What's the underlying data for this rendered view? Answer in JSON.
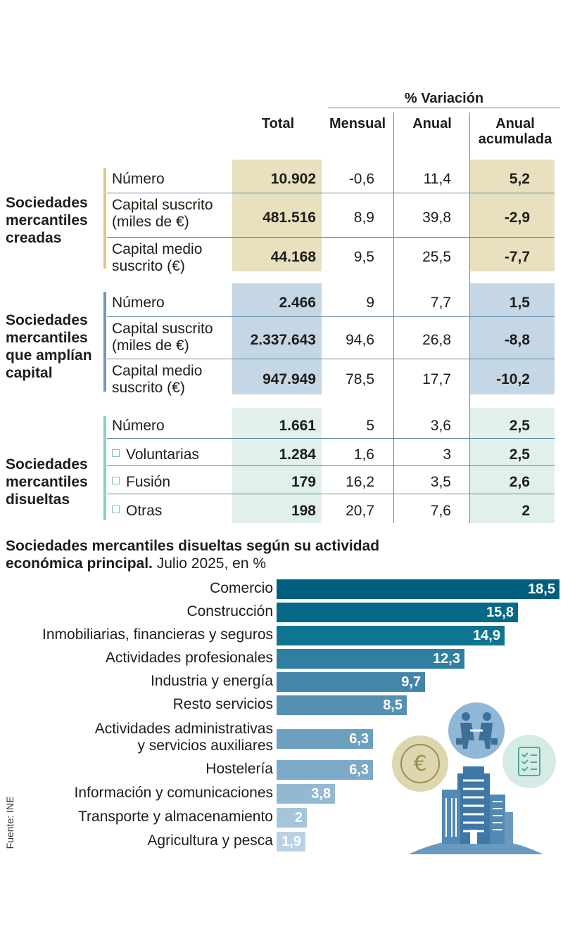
{
  "table": {
    "variation_header": "% Variación",
    "columns": [
      "Total",
      "Mensual",
      "Anual",
      "Anual acumulada"
    ],
    "groups": [
      {
        "name": "Sociedades mercantiles creadas",
        "rows": [
          {
            "label": "Número",
            "values": [
              "10.902",
              "-0,6",
              "11,4",
              "5,2"
            ]
          },
          {
            "label": "Capital suscrito (miles de €)",
            "values": [
              "481.516",
              "8,9",
              "39,8",
              "-2,9"
            ]
          },
          {
            "label": "Capital medio suscrito (€)",
            "values": [
              "44.168",
              "9,5",
              "25,5",
              "-7,7"
            ]
          }
        ],
        "color": "#e8e0bf",
        "bracket_color": "#d8c98a"
      },
      {
        "name": "Sociedades mercantiles que amplían capital",
        "rows": [
          {
            "label": "Número",
            "values": [
              "2.466",
              "9",
              "7,7",
              "1,5"
            ]
          },
          {
            "label": "Capital suscrito (miles de €)",
            "values": [
              "2.337.643",
              "94,6",
              "26,8",
              "-8,8"
            ]
          },
          {
            "label": "Capital medio suscrito (€)",
            "values": [
              "947.949",
              "78,5",
              "17,7",
              "-10,2"
            ]
          }
        ],
        "color": "#c5d7e4",
        "bracket_color": "#6f98bb"
      },
      {
        "name": "Sociedades mercantiles disueltas",
        "rows": [
          {
            "label": "Número",
            "values": [
              "1.661",
              "5",
              "3,6",
              "2,5"
            ]
          },
          {
            "label": "Voluntarias",
            "values": [
              "1.284",
              "1,6",
              "3",
              "2,5"
            ]
          },
          {
            "label": "Fusión",
            "values": [
              "179",
              "16,2",
              "3,5",
              "2,6"
            ]
          },
          {
            "label": "Otras",
            "values": [
              "198",
              "20,7",
              "7,6",
              "2"
            ]
          }
        ],
        "color": "#e2f0ec",
        "bracket_color": "#8fcfc2"
      }
    ]
  },
  "chart_data": {
    "type": "bar",
    "orientation": "horizontal",
    "title": "Sociedades mercantiles disueltas según su actividad económica principal.",
    "subtitle": "Julio 2025, en %",
    "categories": [
      "Comercio",
      "Construcción",
      "Inmobiliarias, financieras y seguros",
      "Actividades profesionales",
      "Industria y energía",
      "Resto servicios",
      "Actividades administrativas\ny servicios auxiliares",
      "Hostelería",
      "Información y comunicaciones",
      "Transporte y almacenamiento",
      "Agricultura y pesca"
    ],
    "values": [
      18.5,
      15.8,
      14.9,
      12.3,
      9.7,
      8.5,
      6.3,
      6.3,
      3.8,
      2,
      1.9
    ],
    "value_labels": [
      "18,5",
      "15,8",
      "14,9",
      "12,3",
      "9,7",
      "8,5",
      "6,3",
      "6,3",
      "3,8",
      "2",
      "1,9"
    ],
    "colors": [
      "#005f7e",
      "#066a86",
      "#0f7490",
      "#2f7fa0",
      "#4386aa",
      "#5590b2",
      "#6d9fbf",
      "#7ca9c5",
      "#93b9d1",
      "#a5c5da",
      "#b8d2e3"
    ],
    "xlim": [
      0,
      18.5
    ]
  },
  "source": "Fuente: INE",
  "icons": [
    "euro-coin-icon",
    "handshake-icon",
    "checklist-icon",
    "buildings-icon"
  ]
}
